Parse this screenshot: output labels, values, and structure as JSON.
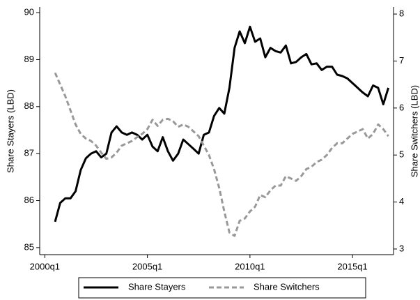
{
  "chart_data": {
    "type": "line",
    "ylabel": "Share Stayers (LBD)",
    "y2label": "Share Switchers (LBD)",
    "x": [
      "2000q3",
      "2000q4",
      "2001q1",
      "2001q2",
      "2001q3",
      "2001q4",
      "2002q1",
      "2002q2",
      "2002q3",
      "2002q4",
      "2003q1",
      "2003q2",
      "2003q3",
      "2003q4",
      "2004q1",
      "2004q2",
      "2004q3",
      "2004q4",
      "2005q1",
      "2005q2",
      "2005q3",
      "2005q4",
      "2006q1",
      "2006q2",
      "2006q3",
      "2006q4",
      "2007q1",
      "2007q2",
      "2007q3",
      "2007q4",
      "2008q1",
      "2008q2",
      "2008q3",
      "2008q4",
      "2009q1",
      "2009q2",
      "2009q3",
      "2009q4",
      "2010q1",
      "2010q2",
      "2010q3",
      "2010q4",
      "2011q1",
      "2011q2",
      "2011q3",
      "2011q4",
      "2012q1",
      "2012q2",
      "2012q3",
      "2012q4",
      "2013q1",
      "2013q2",
      "2013q3",
      "2013q4",
      "2014q1",
      "2014q2",
      "2014q3",
      "2014q4",
      "2015q1",
      "2015q2",
      "2015q3",
      "2015q4",
      "2016q1",
      "2016q2",
      "2016q3",
      "2016q4"
    ],
    "xlim": [
      "1999q4",
      "2017q1"
    ],
    "xticks": [
      "2000q1",
      "2005q1",
      "2010q1",
      "2015q1"
    ],
    "ylim": [
      84.85,
      90.12
    ],
    "yticks": [
      85,
      86,
      87,
      88,
      89,
      90
    ],
    "y2lim": [
      2.88,
      8.15
    ],
    "y2ticks": [
      3,
      4,
      5,
      6,
      7,
      8
    ],
    "series": [
      {
        "name": "Share Stayers",
        "color": "#000000",
        "style": "solid",
        "values": [
          85.55,
          85.95,
          86.05,
          86.05,
          86.2,
          86.65,
          86.9,
          87.0,
          87.05,
          86.92,
          87.0,
          87.45,
          87.58,
          87.45,
          87.4,
          87.45,
          87.4,
          87.3,
          87.4,
          87.15,
          87.05,
          87.35,
          87.05,
          86.85,
          87.0,
          87.3,
          87.2,
          87.1,
          87.0,
          87.4,
          87.45,
          87.8,
          87.97,
          87.85,
          88.4,
          89.25,
          89.6,
          89.35,
          89.7,
          89.38,
          89.45,
          89.05,
          89.25,
          89.18,
          89.15,
          89.3,
          88.92,
          88.95,
          89.05,
          89.12,
          88.9,
          88.92,
          88.78,
          88.85,
          88.85,
          88.68,
          88.65,
          88.6,
          88.5,
          88.4,
          88.3,
          88.22,
          88.45,
          88.4,
          88.05,
          88.4
        ]
      },
      {
        "name": "Share Switchers",
        "color": "#999999",
        "style": "dashed",
        "axis": "y2",
        "values": [
          6.75,
          6.5,
          6.25,
          5.95,
          5.65,
          5.45,
          5.35,
          5.3,
          5.2,
          5.05,
          4.92,
          4.95,
          5.05,
          5.2,
          5.25,
          5.3,
          5.38,
          5.45,
          5.55,
          5.75,
          5.62,
          5.75,
          5.77,
          5.72,
          5.6,
          5.65,
          5.6,
          5.5,
          5.4,
          5.2,
          5.0,
          4.7,
          4.3,
          3.8,
          3.35,
          3.28,
          3.6,
          3.65,
          3.8,
          3.9,
          4.15,
          4.1,
          4.25,
          4.35,
          4.35,
          4.55,
          4.5,
          4.45,
          4.55,
          4.7,
          4.75,
          4.85,
          4.9,
          5.0,
          5.15,
          5.25,
          5.25,
          5.35,
          5.45,
          5.5,
          5.55,
          5.35,
          5.45,
          5.65,
          5.55,
          5.4
        ]
      }
    ]
  }
}
